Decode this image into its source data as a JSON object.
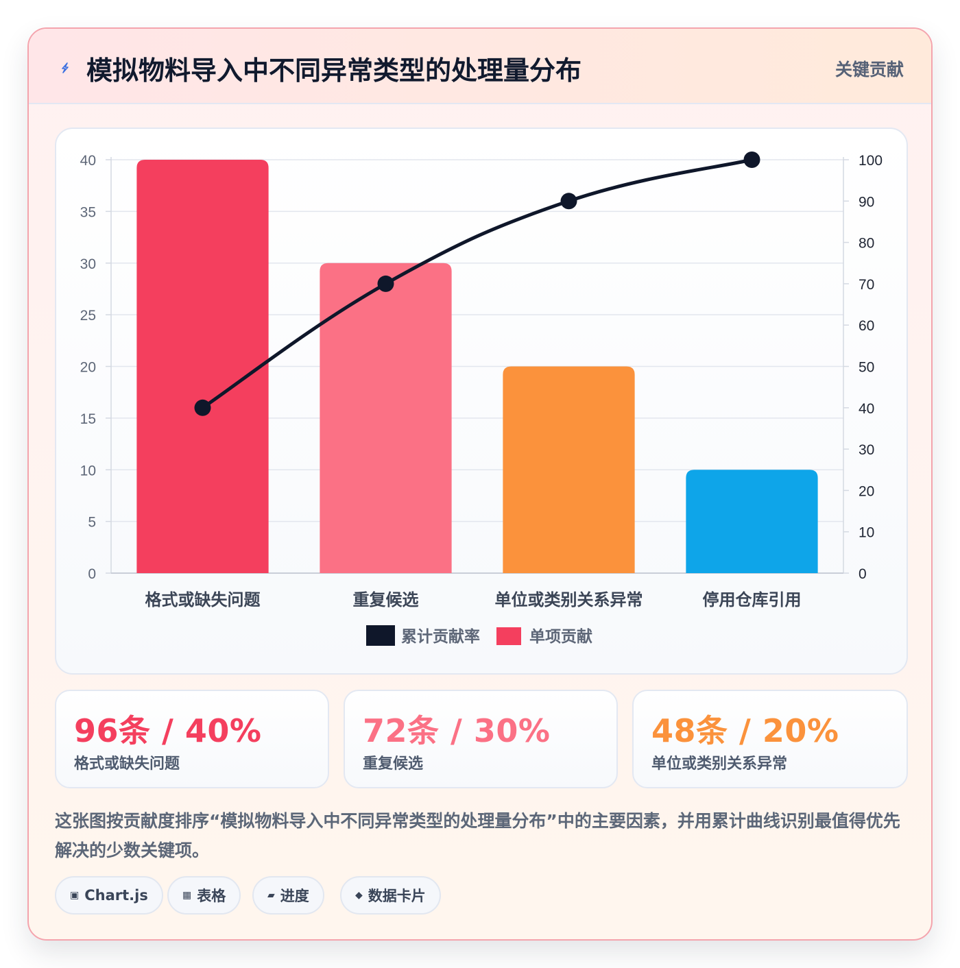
{
  "header": {
    "title": "模拟物料导入中不同异常类型的处理量分布",
    "tag": "关键贡献",
    "icon": "lightning-icon"
  },
  "chart_data": {
    "type": "bar",
    "categories": [
      "格式或缺失问题",
      "重复候选",
      "单位或类别关系异常",
      "停用仓库引用"
    ],
    "series": [
      {
        "name": "单项贡献",
        "type": "bar",
        "axis": "left",
        "values": [
          40,
          30,
          20,
          10
        ]
      },
      {
        "name": "累计贡献率",
        "type": "line",
        "axis": "right",
        "values": [
          40,
          70,
          90,
          100
        ]
      }
    ],
    "bar_colors": [
      "#f43f5e",
      "#fb7185",
      "#fb923c",
      "#0ea5e9"
    ],
    "line_color": "#0f172a",
    "y_left": {
      "ylim": [
        0,
        40
      ],
      "ticks": [
        0,
        5,
        10,
        15,
        20,
        25,
        30,
        35,
        40
      ]
    },
    "y_right": {
      "ylim": [
        0,
        100
      ],
      "ticks": [
        0,
        10,
        20,
        30,
        40,
        50,
        60,
        70,
        80,
        90,
        100
      ]
    },
    "legend": [
      "累计贡献率",
      "单项贡献"
    ],
    "legend_placement": "bottom",
    "grid": true
  },
  "stats": [
    {
      "value": "96条 / 40%",
      "label": "格式或缺失问题",
      "color": "#f43f5e"
    },
    {
      "value": "72条 / 30%",
      "label": "重复候选",
      "color": "#fb7185"
    },
    {
      "value": "48条 / 20%",
      "label": "单位或类别关系异常",
      "color": "#fb923c"
    }
  ],
  "description": "这张图按贡献度排序“模拟物料导入中不同异常类型的处理量分布”中的主要因素，并用累计曲线识别最值得优先解决的少数关键项。",
  "chips": [
    {
      "icon": "▣",
      "label": "Chart.js"
    },
    {
      "icon": "▦",
      "label": "表格"
    },
    {
      "icon": "▰",
      "label": "进度"
    },
    {
      "icon": "◆",
      "label": "数据卡片"
    }
  ]
}
